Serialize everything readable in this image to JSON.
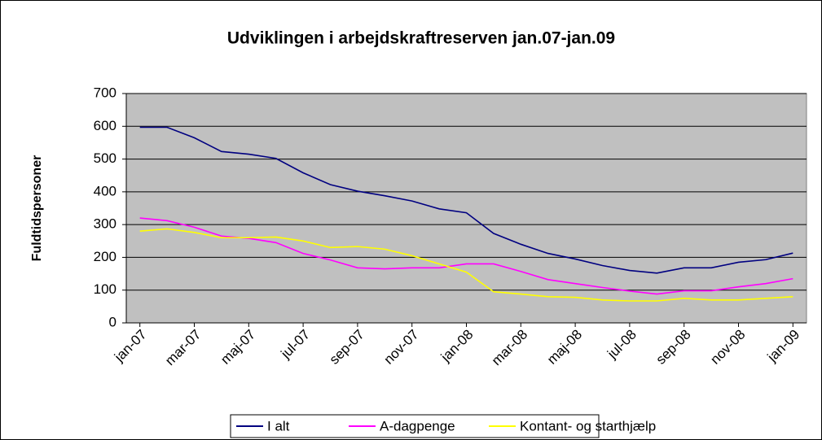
{
  "chart_data": {
    "type": "line",
    "title": "Udviklingen i arbejdskraftreserven jan.07-jan.09",
    "y_label": "Fuldtidspersoner",
    "categories": [
      "jan-07",
      null,
      "mar-07",
      null,
      "maj-07",
      null,
      "jul-07",
      null,
      "sep-07",
      null,
      "nov-07",
      null,
      "jan-08",
      null,
      "mar-08",
      null,
      "maj-08",
      null,
      "jul-08",
      null,
      "sep-08",
      null,
      "nov-08",
      null,
      "jan-09"
    ],
    "series": [
      {
        "name": "I alt",
        "color": "#000080",
        "values": [
          597,
          597,
          565,
          523,
          515,
          502,
          458,
          422,
          402,
          388,
          372,
          348,
          336,
          273,
          240,
          212,
          195,
          175,
          160,
          152,
          168,
          168,
          185,
          193,
          213
        ]
      },
      {
        "name": "A-dagpenge",
        "color": "#ff00ff",
        "values": [
          320,
          312,
          292,
          265,
          258,
          245,
          212,
          192,
          168,
          165,
          168,
          168,
          180,
          180,
          157,
          132,
          120,
          108,
          97,
          88,
          98,
          98,
          110,
          120,
          135
        ]
      },
      {
        "name": "Kontant- og starthjælp",
        "color": "#ffff00",
        "values": [
          280,
          287,
          276,
          260,
          260,
          262,
          250,
          230,
          233,
          225,
          205,
          180,
          155,
          95,
          88,
          80,
          78,
          70,
          67,
          67,
          75,
          70,
          70,
          75,
          80
        ]
      }
    ],
    "ylim": [
      0,
      700
    ],
    "yticks": [
      0,
      100,
      200,
      300,
      400,
      500,
      600,
      700
    ],
    "grid": true,
    "legend": "bottom"
  }
}
